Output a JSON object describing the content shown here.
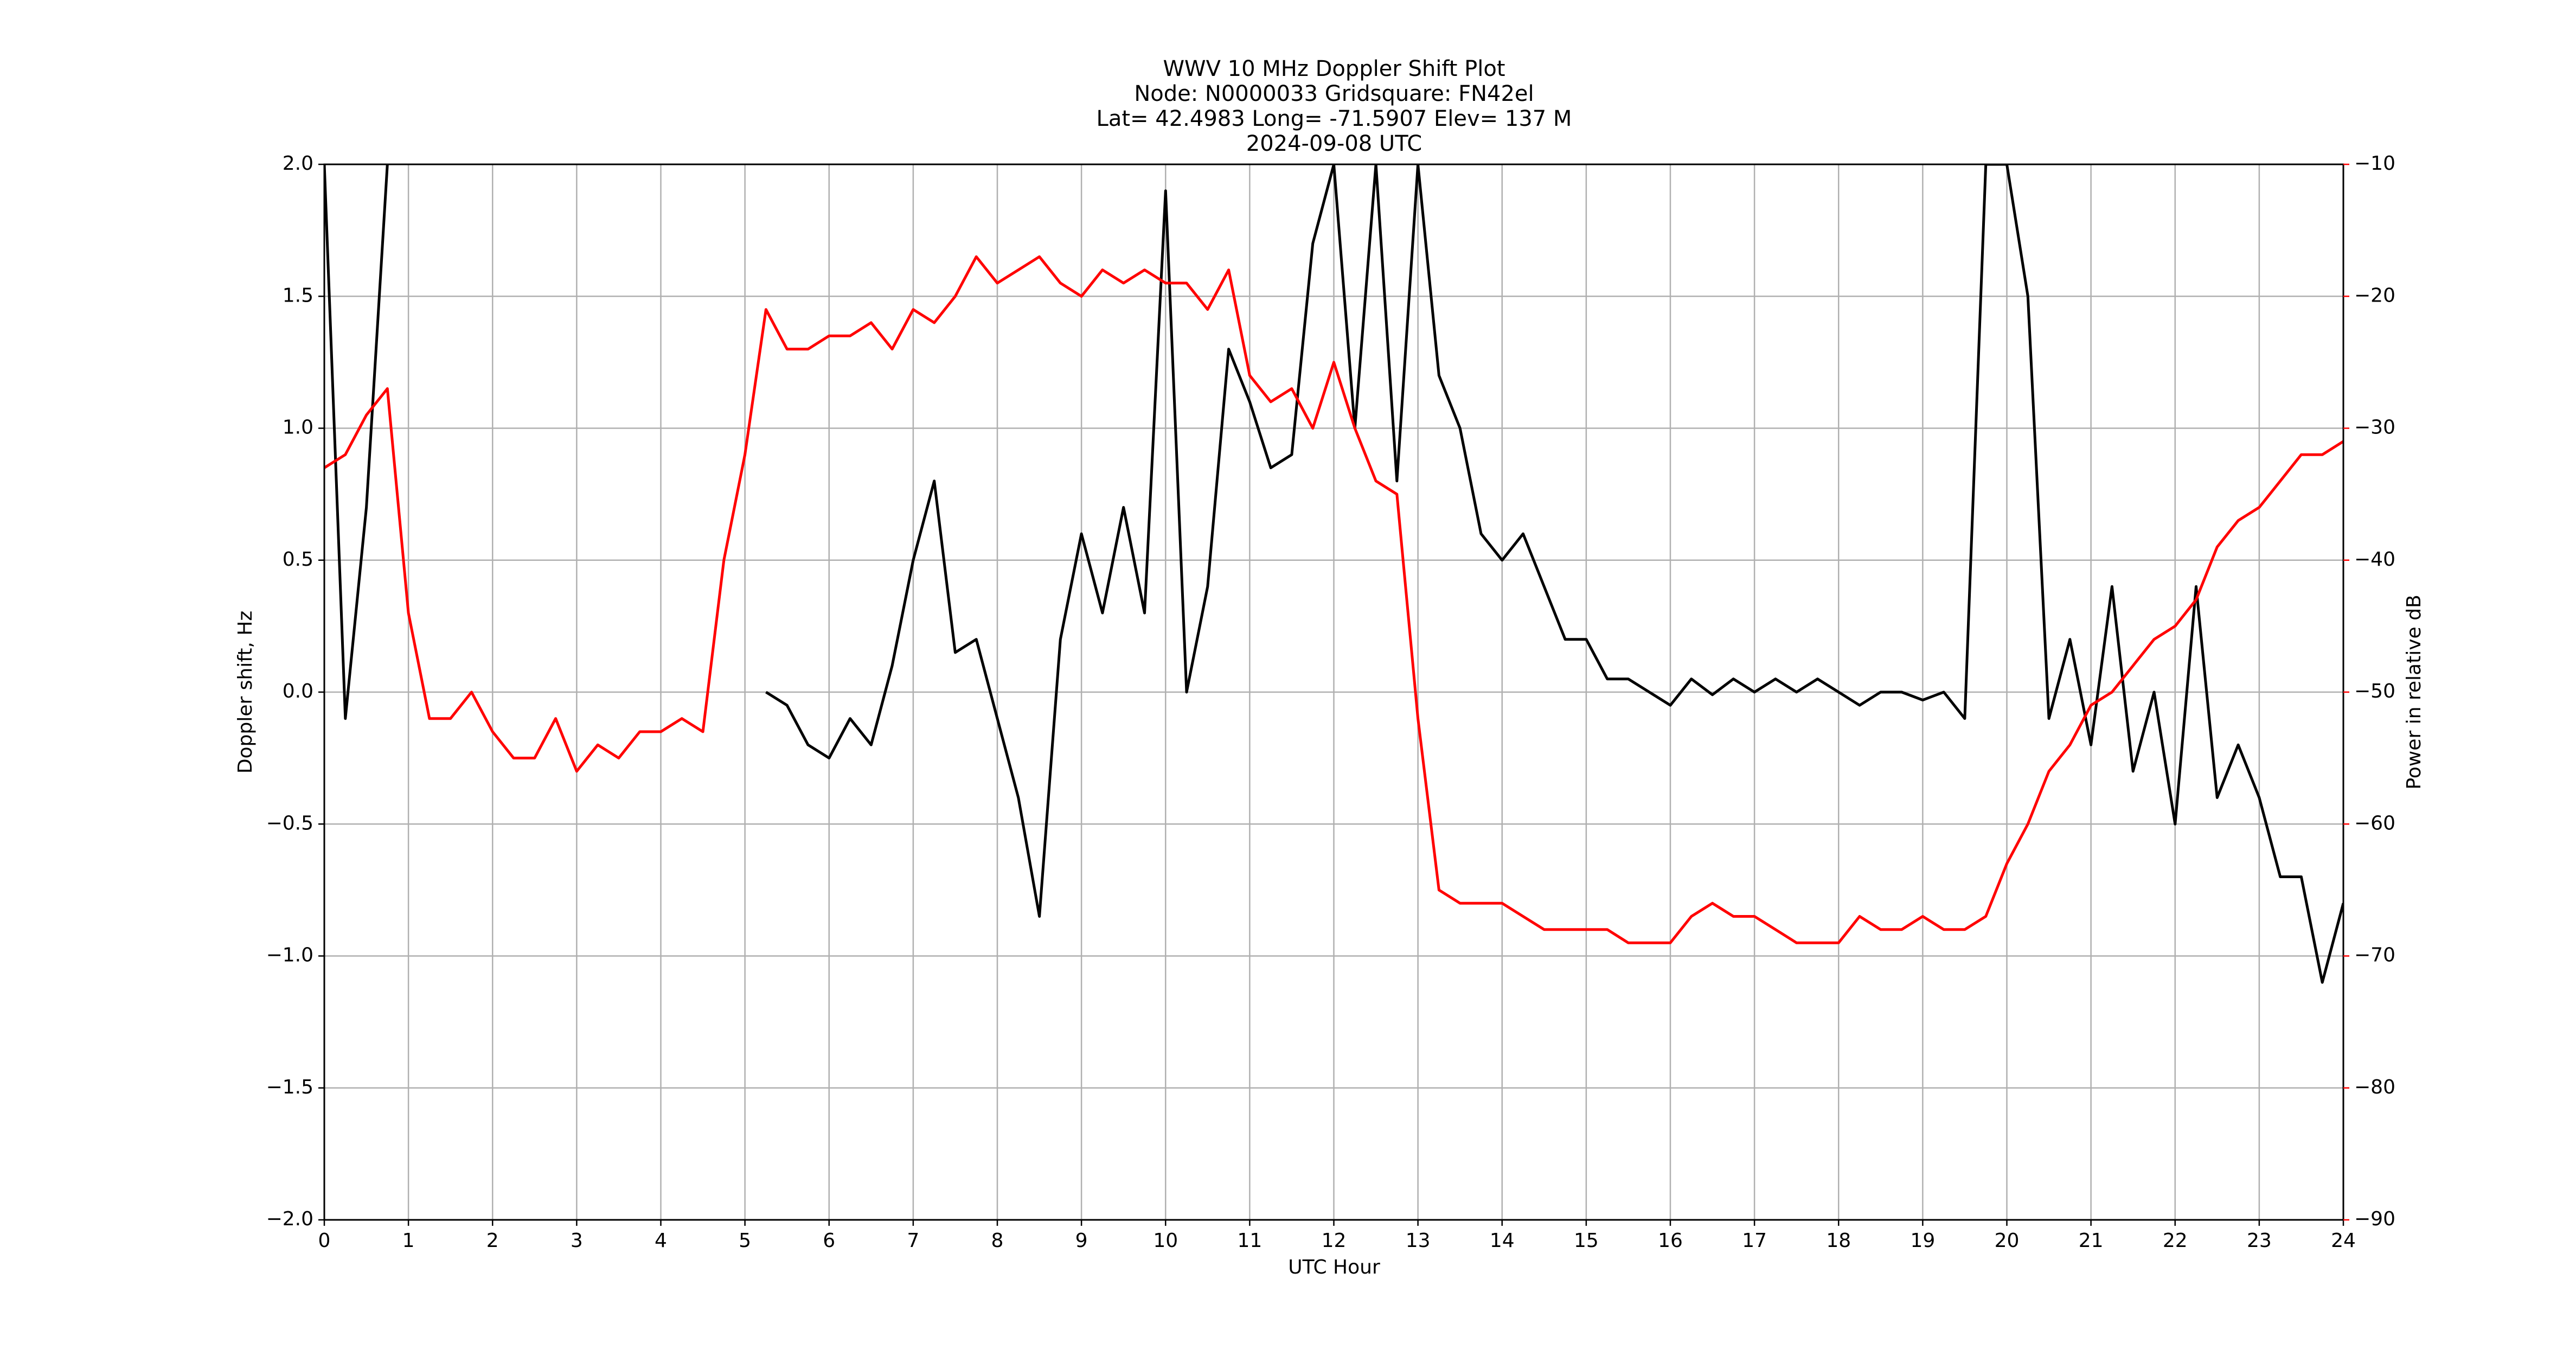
{
  "chart_data": {
    "type": "line",
    "title": [
      "WWV 10 MHz Doppler Shift Plot",
      "Node:  N0000033     Gridsquare:  FN42el",
      "Lat= 42.4983    Long= -71.5907    Elev= 137 M",
      "2024-09-08  UTC"
    ],
    "x_label": "UTC Hour",
    "y_label": "Doppler shift, Hz",
    "y2_label": "Power in relative dB",
    "y2_color": "#ff0000",
    "grid": true,
    "x": [
      0,
      0.25,
      0.5,
      0.75,
      1,
      1.25,
      1.5,
      1.75,
      2,
      2.25,
      2.5,
      2.75,
      3,
      3.25,
      3.5,
      3.75,
      4,
      4.25,
      4.5,
      4.75,
      5,
      5.25,
      5.5,
      5.75,
      6,
      6.25,
      6.5,
      6.75,
      7,
      7.25,
      7.5,
      7.75,
      8,
      8.25,
      8.5,
      8.75,
      9,
      9.25,
      9.5,
      9.75,
      10,
      10.25,
      10.5,
      10.75,
      11,
      11.25,
      11.5,
      11.75,
      12,
      12.25,
      12.5,
      12.75,
      13,
      13.25,
      13.5,
      13.75,
      14,
      14.25,
      14.5,
      14.75,
      15,
      15.25,
      15.5,
      15.75,
      16,
      16.25,
      16.5,
      16.75,
      17,
      17.25,
      17.5,
      17.75,
      18,
      18.25,
      18.5,
      18.75,
      19,
      19.25,
      19.5,
      19.75,
      20,
      20.25,
      20.5,
      20.75,
      21,
      21.25,
      21.5,
      21.75,
      22,
      22.25,
      22.5,
      22.75,
      23,
      23.25,
      23.5,
      23.75,
      24
    ],
    "series": [
      {
        "name": "Doppler shift",
        "color": "#000000",
        "values": [
          2.0,
          -0.1,
          0.7,
          2.0,
          null,
          null,
          null,
          null,
          null,
          null,
          null,
          null,
          null,
          null,
          null,
          null,
          null,
          null,
          null,
          null,
          null,
          0.0,
          -0.05,
          -0.2,
          -0.25,
          -0.1,
          -0.2,
          0.1,
          0.5,
          0.8,
          0.15,
          0.2,
          -0.1,
          -0.4,
          -0.85,
          0.2,
          0.6,
          0.3,
          0.7,
          0.3,
          1.9,
          0.0,
          0.4,
          1.3,
          1.1,
          0.85,
          0.9,
          1.7,
          2.0,
          1.0,
          2.0,
          0.8,
          2.0,
          1.2,
          1.0,
          0.6,
          0.5,
          0.6,
          0.4,
          0.2,
          0.2,
          0.05,
          0.05,
          0.0,
          -0.05,
          0.05,
          -0.01,
          0.05,
          0.0,
          0.05,
          0.0,
          0.05,
          0.0,
          -0.05,
          0.0,
          0.0,
          -0.03,
          0.0,
          -0.1,
          2.0,
          2.0,
          1.5,
          -0.1,
          0.2,
          -0.2,
          0.4,
          -0.3,
          0.0,
          -0.5,
          0.4,
          -0.4,
          -0.2,
          -0.4,
          -0.7,
          -0.7,
          -1.1,
          -0.8
        ]
      },
      {
        "name": "Power",
        "color": "#ff0000",
        "axis": "y2",
        "values": [
          -33,
          -32,
          -29,
          -27,
          -44,
          -52,
          -52,
          -50,
          -53,
          -55,
          -55,
          -52,
          -56,
          -54,
          -55,
          -53,
          -53,
          -52,
          -53,
          -40,
          -32,
          -21,
          -24,
          -24,
          -23,
          -23,
          -22,
          -24,
          -21,
          -22,
          -20,
          -17,
          -19,
          -18,
          -17,
          -19,
          -20,
          -18,
          -19,
          -18,
          -19,
          -19,
          -21,
          -18,
          -26,
          -28,
          -27,
          -30,
          -25,
          -30,
          -34,
          -35,
          -52,
          -65,
          -66,
          -66,
          -66,
          -67,
          -68,
          -68,
          -68,
          -68,
          -69,
          -69,
          -69,
          -67,
          -66,
          -67,
          -67,
          -68,
          -69,
          -69,
          -69,
          -67,
          -68,
          -68,
          -67,
          -68,
          -68,
          -67,
          -63,
          -60,
          -56,
          -54,
          -51,
          -50,
          -48,
          -46,
          -45,
          -43,
          -39,
          -37,
          -36,
          -34,
          -32,
          -32,
          -31
        ]
      }
    ],
    "xlim": [
      0,
      24
    ],
    "xticks": [
      0,
      1,
      2,
      3,
      4,
      5,
      6,
      7,
      8,
      9,
      10,
      11,
      12,
      13,
      14,
      15,
      16,
      17,
      18,
      19,
      20,
      21,
      22,
      23,
      24
    ],
    "ylim": [
      -2.0,
      2.0
    ],
    "yticks": [
      {
        "value": -2.0,
        "label": "−2.0"
      },
      {
        "value": -1.5,
        "label": "−1.5"
      },
      {
        "value": -1.0,
        "label": "−1.0"
      },
      {
        "value": -0.5,
        "label": "−0.5"
      },
      {
        "value": 0.0,
        "label": "0.0"
      },
      {
        "value": 0.5,
        "label": "0.5"
      },
      {
        "value": 1.0,
        "label": "1.0"
      },
      {
        "value": 1.5,
        "label": "1.5"
      },
      {
        "value": 2.0,
        "label": "2.0"
      }
    ],
    "y2lim": [
      -90,
      -10
    ],
    "y2ticks": [
      {
        "value": -90,
        "label": "−90"
      },
      {
        "value": -80,
        "label": "−80"
      },
      {
        "value": -70,
        "label": "−70"
      },
      {
        "value": -60,
        "label": "−60"
      },
      {
        "value": -50,
        "label": "−50"
      },
      {
        "value": -40,
        "label": "−40"
      },
      {
        "value": -30,
        "label": "−30"
      },
      {
        "value": -20,
        "label": "−20"
      },
      {
        "value": -10,
        "label": "−10"
      }
    ]
  }
}
